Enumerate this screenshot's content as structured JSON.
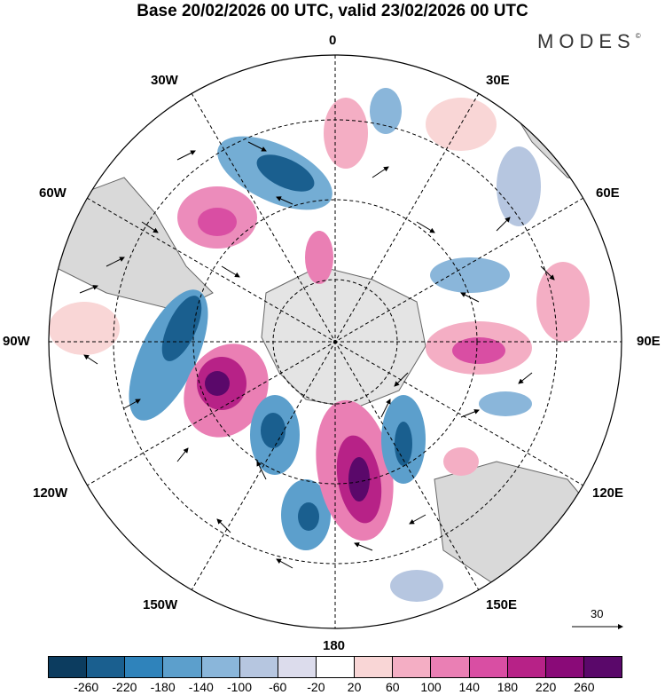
{
  "title": "Base 20/02/2026 00 UTC, valid 23/02/2026 00 UTC",
  "brand": "MODES",
  "brand_mark": "©",
  "map": {
    "projection": "south polar stereographic",
    "longitude_labels": {
      "top": "0",
      "top_right": "30E",
      "right_upper": "60E",
      "right": "90E",
      "right_lower": "120E",
      "bottom_right": "150E",
      "bottom": "180",
      "bottom_left": "150W",
      "left_lower": "120W",
      "left": "90W",
      "left_upper": "60W",
      "top_left": "30W"
    },
    "reference_vector": "30",
    "colors": {
      "ocean": "#ffffff",
      "land": "#d9d9d9",
      "antarctica": "#e4e4e4"
    }
  },
  "colorbar": {
    "ticks": [
      "-260",
      "-220",
      "-180",
      "-140",
      "-100",
      "-60",
      "-20",
      "20",
      "60",
      "100",
      "140",
      "180",
      "220",
      "260"
    ],
    "colors": [
      "#0c3c5f",
      "#1a5f8f",
      "#2f83bb",
      "#5c9fcc",
      "#8ab6da",
      "#b6c6e0",
      "#dcdcec",
      "#ffffff",
      "#f9d6d6",
      "#f4aec4",
      "#ea7fb4",
      "#d94ea3",
      "#b72287",
      "#8a0a78",
      "#5a086a"
    ]
  }
}
